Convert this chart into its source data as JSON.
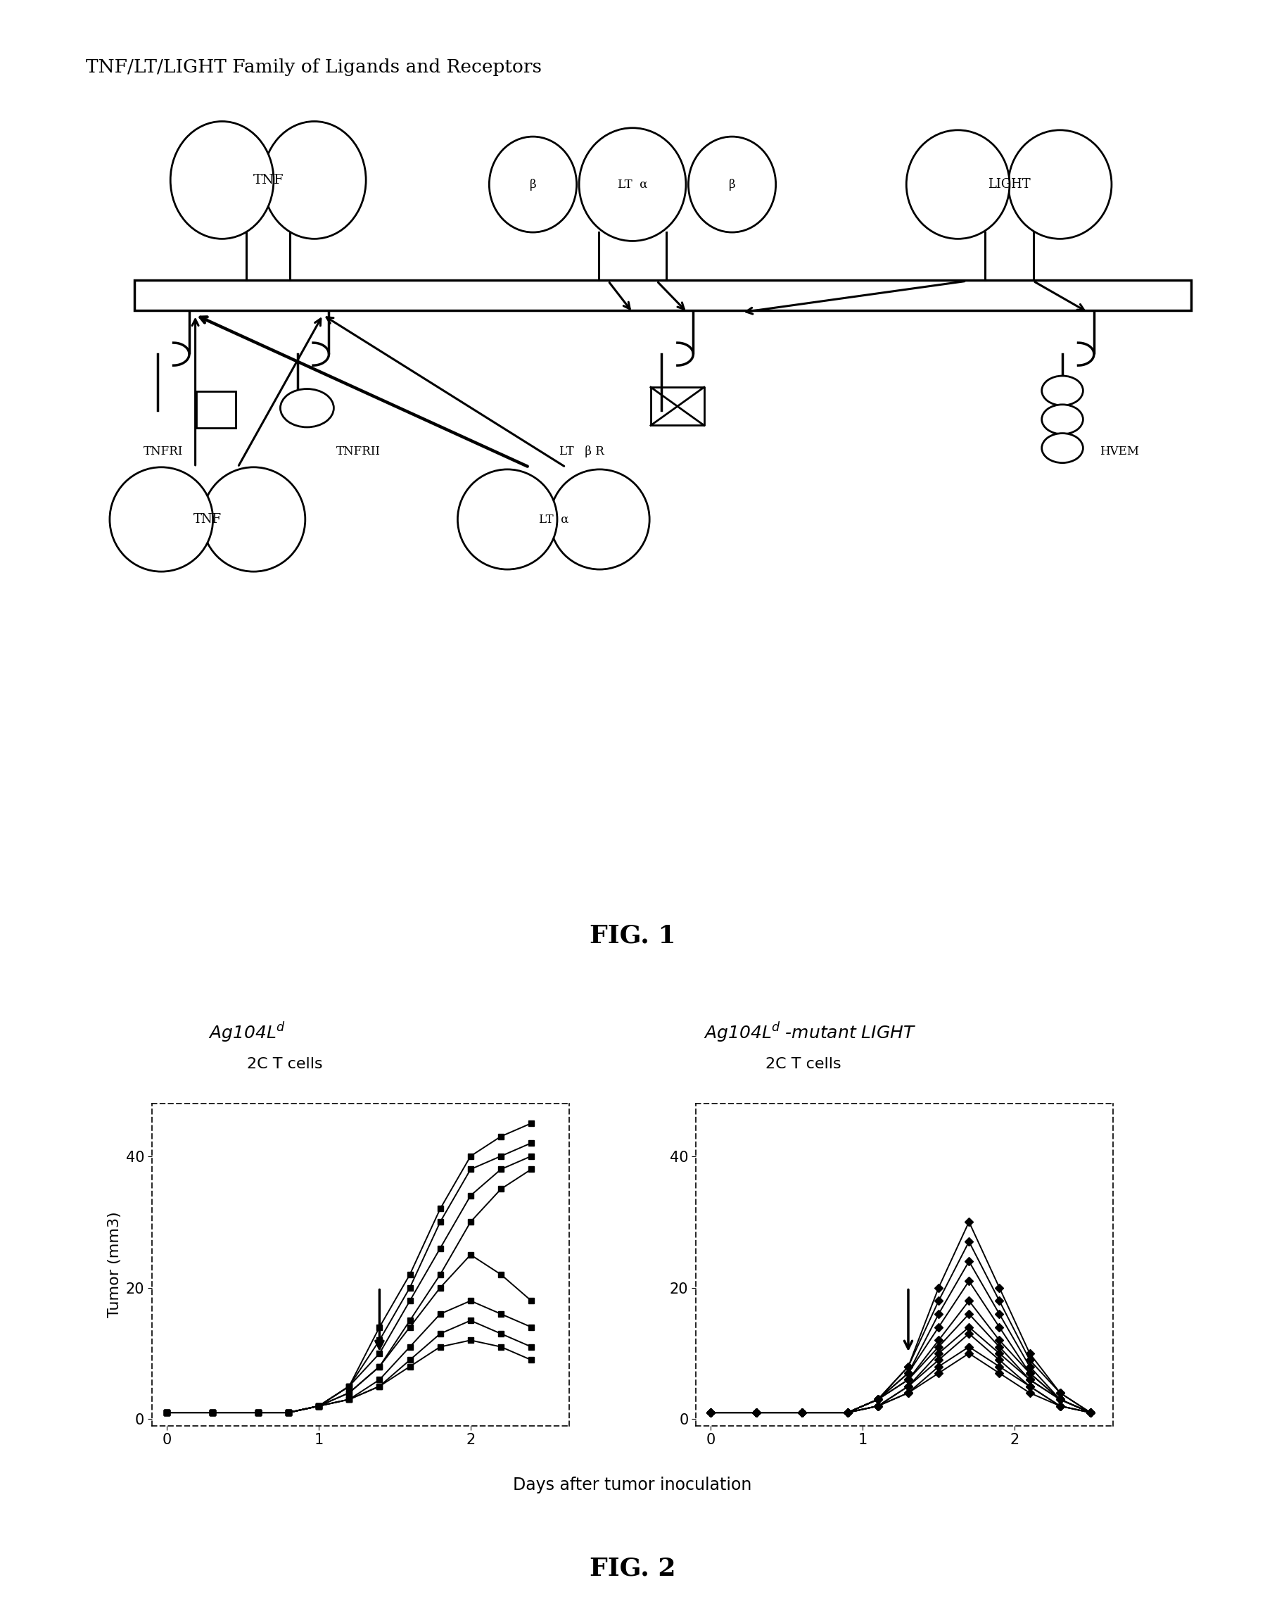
{
  "title_fig1": "TNF/LT/LIGHT Family of Ligands and Receptors",
  "fig1_label": "FIG. 1",
  "fig2_label": "FIG. 2",
  "left_panel_title": "Ag104L$^d$",
  "right_panel_title": "Ag104L$^d$ -mutant LIGHT",
  "left_subtitle": "2C T cells",
  "right_subtitle": "2C T cells",
  "ylabel": "Tumor (mm3)",
  "xlabel": "Days after tumor inoculation",
  "yticks": [
    0,
    20,
    40
  ],
  "xticks": [
    0,
    1,
    2
  ],
  "left_series_x": [
    [
      0.0,
      0.3,
      0.6,
      0.8,
      1.0,
      1.2,
      1.4,
      1.6,
      1.8,
      2.0,
      2.2,
      2.4
    ],
    [
      0.0,
      0.3,
      0.6,
      0.8,
      1.0,
      1.2,
      1.4,
      1.6,
      1.8,
      2.0,
      2.2,
      2.4
    ],
    [
      0.0,
      0.3,
      0.6,
      0.8,
      1.0,
      1.2,
      1.4,
      1.6,
      1.8,
      2.0,
      2.2,
      2.4
    ],
    [
      0.0,
      0.3,
      0.6,
      0.8,
      1.0,
      1.2,
      1.4,
      1.6,
      1.8,
      2.0,
      2.2,
      2.4
    ],
    [
      0.0,
      0.3,
      0.6,
      0.8,
      1.0,
      1.2,
      1.4,
      1.6,
      1.8,
      2.0,
      2.2,
      2.4
    ],
    [
      0.0,
      0.3,
      0.6,
      0.8,
      1.0,
      1.2,
      1.4,
      1.6,
      1.8,
      2.0,
      2.2,
      2.4
    ],
    [
      0.0,
      0.3,
      0.6,
      0.8,
      1.0,
      1.2,
      1.4,
      1.6,
      1.8,
      2.0,
      2.2,
      2.4
    ],
    [
      0.0,
      0.3,
      0.6,
      0.8,
      1.0,
      1.2,
      1.4,
      1.6,
      1.8,
      2.0,
      2.2,
      2.4
    ]
  ],
  "left_series_y": [
    [
      1,
      1,
      1,
      1,
      2,
      5,
      14,
      22,
      32,
      40,
      43,
      45
    ],
    [
      1,
      1,
      1,
      1,
      2,
      5,
      12,
      20,
      30,
      38,
      40,
      42
    ],
    [
      1,
      1,
      1,
      1,
      2,
      5,
      10,
      18,
      26,
      34,
      38,
      40
    ],
    [
      1,
      1,
      1,
      1,
      2,
      4,
      8,
      15,
      22,
      30,
      35,
      38
    ],
    [
      1,
      1,
      1,
      1,
      2,
      4,
      8,
      14,
      20,
      25,
      22,
      18
    ],
    [
      1,
      1,
      1,
      1,
      2,
      3,
      6,
      11,
      16,
      18,
      16,
      14
    ],
    [
      1,
      1,
      1,
      1,
      2,
      3,
      5,
      9,
      13,
      15,
      13,
      11
    ],
    [
      1,
      1,
      1,
      1,
      2,
      3,
      5,
      8,
      11,
      12,
      11,
      9
    ]
  ],
  "right_series_x": [
    [
      0.0,
      0.3,
      0.6,
      0.9,
      1.1,
      1.3,
      1.5,
      1.7,
      1.9,
      2.1,
      2.3,
      2.5
    ],
    [
      0.0,
      0.3,
      0.6,
      0.9,
      1.1,
      1.3,
      1.5,
      1.7,
      1.9,
      2.1,
      2.3,
      2.5
    ],
    [
      0.0,
      0.3,
      0.6,
      0.9,
      1.1,
      1.3,
      1.5,
      1.7,
      1.9,
      2.1,
      2.3,
      2.5
    ],
    [
      0.0,
      0.3,
      0.6,
      0.9,
      1.1,
      1.3,
      1.5,
      1.7,
      1.9,
      2.1,
      2.3,
      2.5
    ],
    [
      0.0,
      0.3,
      0.6,
      0.9,
      1.1,
      1.3,
      1.5,
      1.7,
      1.9,
      2.1,
      2.3,
      2.5
    ],
    [
      0.0,
      0.3,
      0.6,
      0.9,
      1.1,
      1.3,
      1.5,
      1.7,
      1.9,
      2.1,
      2.3,
      2.5
    ],
    [
      0.0,
      0.3,
      0.6,
      0.9,
      1.1,
      1.3,
      1.5,
      1.7,
      1.9,
      2.1,
      2.3,
      2.5
    ],
    [
      0.0,
      0.3,
      0.6,
      0.9,
      1.1,
      1.3,
      1.5,
      1.7,
      1.9,
      2.1,
      2.3,
      2.5
    ],
    [
      0.0,
      0.3,
      0.6,
      0.9,
      1.1,
      1.3,
      1.5,
      1.7,
      1.9,
      2.1,
      2.3,
      2.5
    ],
    [
      0.0,
      0.3,
      0.6,
      0.9,
      1.1,
      1.3,
      1.5,
      1.7,
      1.9,
      2.1,
      2.3,
      2.5
    ]
  ],
  "right_series_y": [
    [
      1,
      1,
      1,
      1,
      3,
      8,
      20,
      30,
      20,
      10,
      4,
      1
    ],
    [
      1,
      1,
      1,
      1,
      3,
      8,
      18,
      27,
      18,
      9,
      4,
      1
    ],
    [
      1,
      1,
      1,
      1,
      3,
      7,
      16,
      24,
      16,
      8,
      3,
      1
    ],
    [
      1,
      1,
      1,
      1,
      3,
      7,
      14,
      21,
      14,
      7,
      3,
      1
    ],
    [
      1,
      1,
      1,
      1,
      3,
      6,
      12,
      18,
      12,
      7,
      3,
      1
    ],
    [
      1,
      1,
      1,
      1,
      3,
      6,
      11,
      16,
      11,
      6,
      3,
      1
    ],
    [
      1,
      1,
      1,
      1,
      2,
      5,
      10,
      14,
      10,
      6,
      3,
      1
    ],
    [
      1,
      1,
      1,
      1,
      2,
      5,
      9,
      13,
      9,
      5,
      2,
      1
    ],
    [
      1,
      1,
      1,
      1,
      2,
      4,
      8,
      11,
      8,
      5,
      2,
      1
    ],
    [
      1,
      1,
      1,
      1,
      2,
      4,
      7,
      10,
      7,
      4,
      2,
      1
    ]
  ],
  "background_color": "#ffffff"
}
